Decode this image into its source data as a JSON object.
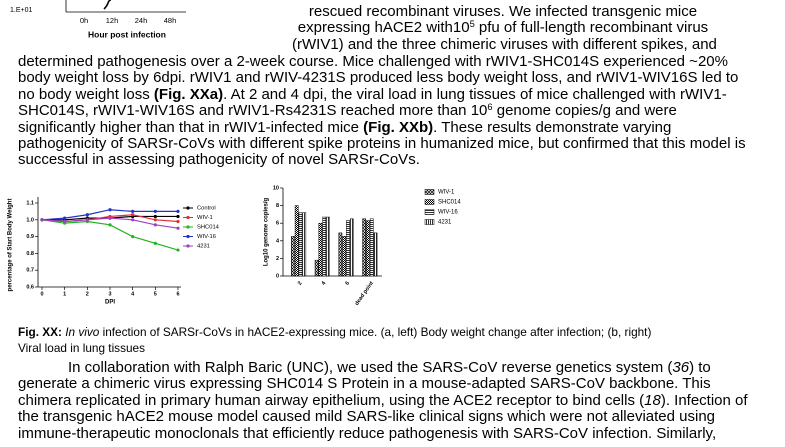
{
  "top_figure": {
    "ytick": {
      "value": 10,
      "label": "1.E+01"
    },
    "categories": [
      "0h",
      "12h",
      "24h",
      "48h"
    ],
    "xlabel": "Hour post infection"
  },
  "intro": {
    "lines": [
      [
        "rescued recombinant viruses. We infected transgenic mice"
      ],
      [
        "expressing hACE2 with10",
        {
          "text": "5",
          "style": "sup"
        },
        " pfu of full-length recombinant virus"
      ],
      [
        "(rWIV1) and the three chimeric viruses with different spikes, and"
      ]
    ]
  },
  "body": {
    "lines": [
      [
        "determined pathogenesis over a 2-week course. Mice challenged with rWIV1-SHC014S experienced ~20%"
      ],
      [
        "body weight loss by 6dpi. rWIV1 and rWIV-4231S produced less body weight loss, and rWIV1-WIV16S led to"
      ],
      [
        "no body weight loss ",
        {
          "text": "(Fig. XXa)",
          "style": "bold"
        },
        ". At 2 and 4 dpi, the viral load in lung tissues of mice challenged with rWIV1-"
      ],
      [
        "SHC014S, rWIV1-WIV16S and rWIV1-Rs4231S reached more than 10",
        {
          "text": "6",
          "style": "sup"
        },
        " genome copies/g and were"
      ],
      [
        "significantly higher than that in rWIV1-infected mice ",
        {
          "text": "(Fig. XXb)",
          "style": "bold"
        },
        ".  These results demonstrate varying"
      ],
      [
        "pathogenicity of SARSr-CoVs with different spike proteins in humanized mice, but confirmed that this model is"
      ],
      [
        "successful in assessing pathogenicity of novel SARSr-CoVs."
      ]
    ]
  },
  "figure_a": {
    "type": "line",
    "ylabel": "percentage of Start Body Weight",
    "xlabel": "DPI",
    "x": [
      0,
      1,
      2,
      3,
      4,
      5,
      6
    ],
    "xlim": [
      0,
      6
    ],
    "xticks": [
      0,
      1,
      2,
      3,
      4,
      5,
      6
    ],
    "ylim": [
      0.6,
      1.1
    ],
    "yticks": [
      0.6,
      0.7,
      0.8,
      0.9,
      {
        "value": 1,
        "label": "1.0"
      },
      1.1
    ],
    "series": [
      {
        "name": "Control",
        "color": "#000000",
        "values": [
          1.0,
          1.0,
          1.01,
          1.01,
          1.02,
          1.02,
          1.02
        ]
      },
      {
        "name": "WIV-1",
        "color": "#e0303a",
        "values": [
          1.0,
          0.99,
          1.0,
          1.02,
          1.03,
          1.0,
          0.99
        ]
      },
      {
        "name": "SHC014",
        "color": "#22b522",
        "values": [
          1.0,
          0.98,
          0.99,
          0.97,
          0.9,
          0.86,
          0.82
        ]
      },
      {
        "name": "WIV-16",
        "color": "#2233cc",
        "values": [
          1.0,
          1.01,
          1.03,
          1.06,
          1.05,
          1.05,
          1.05
        ]
      },
      {
        "name": "4231",
        "color": "#a040c0",
        "values": [
          1.0,
          0.99,
          1.0,
          1.01,
          1.0,
          0.97,
          0.95
        ]
      }
    ]
  },
  "figure_b": {
    "type": "bar",
    "ylabel": "Log10 genome copies/g",
    "categories": [
      "2",
      "4",
      "6",
      "dead point"
    ],
    "ylim": [
      0,
      10
    ],
    "yticks": [
      0,
      2,
      4,
      6,
      8,
      10
    ],
    "series": [
      {
        "name": "WIV-1",
        "pattern": "crosshatch",
        "values": [
          4.5,
          1.8,
          4.9,
          6.5
        ]
      },
      {
        "name": "SHC014",
        "pattern": "checker",
        "values": [
          8.0,
          6.0,
          4.5,
          6.3
        ]
      },
      {
        "name": "WIV-16",
        "pattern": "horizontal",
        "values": [
          7.2,
          6.7,
          6.3,
          6.5
        ]
      },
      {
        "name": "4231",
        "pattern": "vertical",
        "values": [
          7.2,
          6.7,
          6.5,
          4.9
        ]
      }
    ]
  },
  "caption": {
    "lines": [
      [
        {
          "text": "Fig. XX: ",
          "style": "bold"
        },
        {
          "text": "In vivo",
          "style": "italic"
        },
        " infection of SARSr-CoVs in hACE2-expressing mice. (a, left) Body weight change after infection; (b, right)"
      ],
      [
        "Viral load in lung tissues"
      ]
    ]
  },
  "next": {
    "lines": [
      [
        "In collaboration with Ralph Baric (UNC), we used the SARS-CoV reverse genetics system (",
        {
          "text": "36",
          "style": "italic"
        },
        ") to"
      ],
      [
        "generate a chimeric virus expressing SHC014 S Protein in a mouse-adapted SARS-CoV backbone. This"
      ],
      [
        "chimera replicated in primary human airway epithelium, using the ACE2 receptor to bind cells (",
        {
          "text": "18",
          "style": "italic"
        },
        "). Infection of"
      ],
      [
        "the transgenic hACE2 mouse model caused mild SARS-like clinical signs which were not alleviated using"
      ],
      [
        "immune-therapeutic monoclonals that efficiently reduce pathogenesis with SARS-CoV infection. Similarly,"
      ]
    ]
  }
}
